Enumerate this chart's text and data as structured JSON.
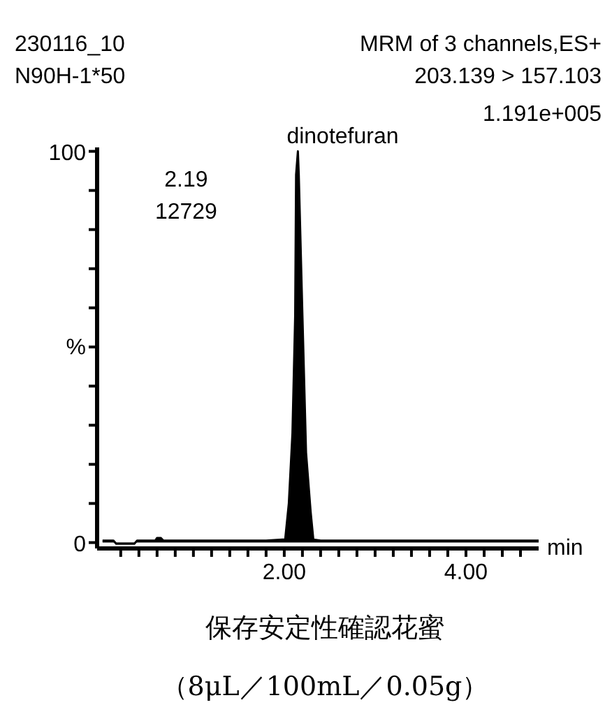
{
  "chart_data": {
    "type": "area",
    "title": "230116_10",
    "subtitle": "N90H-1*50",
    "xlabel": "min",
    "ylabel": "%",
    "color": "#000000",
    "x": [
      0.0,
      0.12,
      0.15,
      0.35,
      0.38,
      0.58,
      0.6,
      0.64,
      0.67,
      1.2,
      1.8,
      2.01,
      2.05,
      2.09,
      2.12,
      2.13,
      2.15,
      2.16,
      2.2,
      2.24,
      2.29,
      2.32,
      2.4,
      3.0,
      4.0,
      4.8
    ],
    "values": [
      0.5,
      0.5,
      -0.3,
      -0.3,
      0.5,
      0.5,
      1.2,
      1.2,
      0.5,
      0.5,
      0.5,
      0.8,
      10,
      28,
      58,
      94,
      100,
      94,
      58,
      23,
      8,
      0.8,
      0.5,
      0.5,
      0.5,
      0.5
    ],
    "xlim": [
      -0.06,
      4.8
    ],
    "ylim": [
      -1.5,
      101
    ],
    "xticks": [
      {
        "value": 0.2,
        "label": null
      },
      {
        "value": 0.4,
        "label": null
      },
      {
        "value": 0.6,
        "label": null
      },
      {
        "value": 0.8,
        "label": null
      },
      {
        "value": 1.0,
        "label": null
      },
      {
        "value": 1.2,
        "label": null
      },
      {
        "value": 1.4,
        "label": null
      },
      {
        "value": 1.6,
        "label": null
      },
      {
        "value": 1.8,
        "label": null
      },
      {
        "value": 2.0,
        "label": "2.00"
      },
      {
        "value": 2.2,
        "label": null
      },
      {
        "value": 2.4,
        "label": null
      },
      {
        "value": 2.6,
        "label": null
      },
      {
        "value": 2.8,
        "label": null
      },
      {
        "value": 3.0,
        "label": null
      },
      {
        "value": 3.2,
        "label": null
      },
      {
        "value": 3.4,
        "label": null
      },
      {
        "value": 3.6,
        "label": null
      },
      {
        "value": 3.8,
        "label": null
      },
      {
        "value": 4.0,
        "label": "4.00"
      },
      {
        "value": 4.2,
        "label": null
      },
      {
        "value": 4.4,
        "label": null
      },
      {
        "value": 4.6,
        "label": null
      }
    ],
    "yticks": [
      0,
      {
        "value": 10,
        "label": null
      },
      {
        "value": 20,
        "label": null
      },
      {
        "value": 30,
        "label": null
      },
      {
        "value": 40,
        "label": null
      },
      {
        "value": 50,
        "label": null
      },
      {
        "value": 60,
        "label": null
      },
      {
        "value": 70,
        "label": null
      },
      {
        "value": 80,
        "label": null
      },
      {
        "value": 90,
        "label": null
      },
      100
    ],
    "annotations": [
      "MRM of 3 channels,ES+",
      "203.139 > 157.103",
      "1.191e+005",
      {
        "text": "dinotefuran",
        "x": 2.15,
        "y": 100
      },
      "2.19",
      "12729",
      "保存安定性確認花蜜",
      "（8μL／100mL／0.05g）"
    ]
  }
}
